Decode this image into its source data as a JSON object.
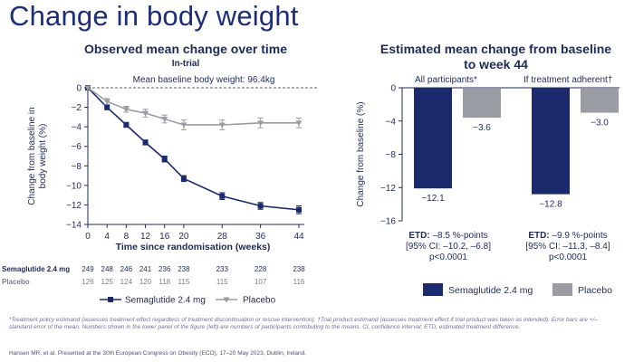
{
  "title": "Change in body weight",
  "line_panel": {
    "subtitle": "Observed mean change over time",
    "subsubtitle": "In-trial",
    "baseline_note": "Mean baseline body weight: 96.4kg",
    "number_labels": [
      "Semaglutide 2.4 mg",
      "Placebo"
    ]
  },
  "bar_panel": {
    "subtitle": "Estimated mean change from baseline to week 44",
    "groups": [
      "All participants*",
      "If treatment adherent†"
    ],
    "etd": [
      {
        "label": "ETD:",
        "value": " –8.5 %-points",
        "ci": "[95% CI: –10.2, –6.8]",
        "p": "p<0.0001"
      },
      {
        "label": "ETD:",
        "value": " –9.9 %-points",
        "ci": "[95% CI: –11.3, –8.4]",
        "p": "p<0.0001"
      }
    ],
    "legend": [
      "Semaglutide 2.4 mg",
      "Placebo"
    ]
  },
  "colors": {
    "semaglutide": "#1a2a6c",
    "placebo": "#9a9ca3",
    "title": "#1c2d7a"
  },
  "chart_data": [
    {
      "type": "line",
      "title": "Observed mean change over time",
      "xlabel": "Time since randomisation (weeks)",
      "ylabel": "Change from baseline in body weight (%)",
      "x": [
        0,
        4,
        8,
        12,
        16,
        20,
        28,
        36,
        44
      ],
      "xticks": [
        "0",
        "4",
        "8",
        "12",
        "16",
        "20",
        "28",
        "36",
        "44"
      ],
      "yticks": [
        "0",
        "−2",
        "−4",
        "−6",
        "−8",
        "−10",
        "−12",
        "−14"
      ],
      "ylim": [
        -14,
        0
      ],
      "series": [
        {
          "name": "Semaglutide 2.4 mg",
          "values": [
            0,
            -2.0,
            -3.8,
            -5.6,
            -7.3,
            -9.3,
            -11.1,
            -12.1,
            -12.5
          ],
          "err": [
            0,
            0.25,
            0.25,
            0.25,
            0.3,
            0.3,
            0.35,
            0.35,
            0.4
          ]
        },
        {
          "name": "Placebo",
          "values": [
            0,
            -1.4,
            -2.2,
            -2.6,
            -3.2,
            -3.8,
            -3.8,
            -3.6,
            -3.6
          ],
          "err": [
            0,
            0.3,
            0.3,
            0.4,
            0.4,
            0.5,
            0.5,
            0.5,
            0.5
          ]
        }
      ],
      "n_at_risk": {
        "Semaglutide 2.4 mg": [
          "249",
          "248",
          "246",
          "241",
          "236",
          "238",
          "233",
          "228",
          "238"
        ],
        "Placebo": [
          "126",
          "125",
          "124",
          "120",
          "118",
          "115",
          "115",
          "107",
          "116"
        ]
      }
    },
    {
      "type": "bar",
      "title": "Estimated mean change from baseline to week 44",
      "ylabel": "Change from baseline (%)",
      "categories": [
        "All participants*",
        "If treatment adherent†"
      ],
      "yticks": [
        "0",
        "−4",
        "−8",
        "−12",
        "−16"
      ],
      "ylim": [
        -16,
        0
      ],
      "series": [
        {
          "name": "Semaglutide 2.4 mg",
          "values": [
            -12.1,
            -12.8
          ],
          "labels": [
            "−12.1",
            "−12.8"
          ]
        },
        {
          "name": "Placebo",
          "values": [
            -3.6,
            -3.0
          ],
          "labels": [
            "−3.6",
            "−3.0"
          ]
        }
      ]
    }
  ],
  "footnotes": {
    "text": "*Treatment policy estimand (assesses treatment effect regardless of treatment discontinuation or rescue intervention); †Trial product estimand (assesses treatment effect if trial product was taken as intended). Error bars are +/– standard error of the mean. Numbers shown in the lower panel of the figure (left) are numbers of participants contributing to the means. CI, confidence interval; ETD, estimated treatment difference.",
    "reference": "Hansen MR, et al. Presented at the 30th European Congress on Obesity (ECO), 17–20 May 2023, Dublin, Ireland."
  }
}
